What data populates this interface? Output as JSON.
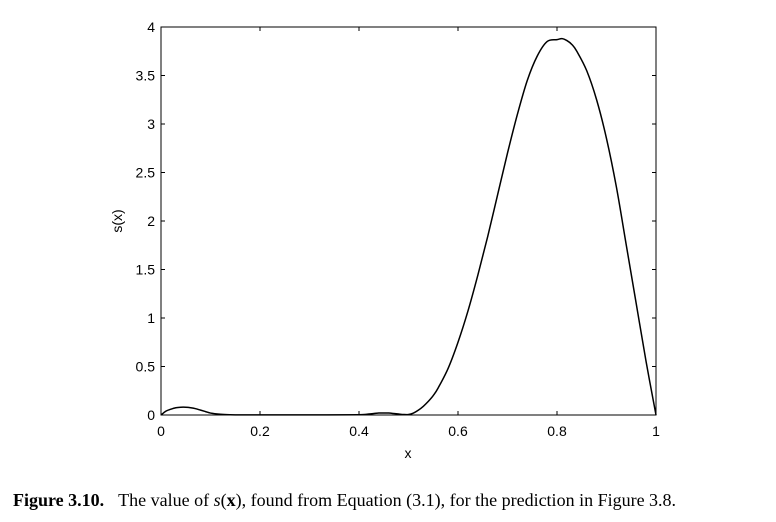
{
  "chart_data": {
    "type": "line",
    "xlabel": "x",
    "ylabel": "s(x)",
    "xlim": [
      0,
      1
    ],
    "ylim": [
      0,
      4
    ],
    "x_ticks": [
      0,
      0.2,
      0.4,
      0.6,
      0.8,
      1
    ],
    "x_tick_labels": [
      "0",
      "0.2",
      "0.4",
      "0.6",
      "0.8",
      "1"
    ],
    "y_ticks": [
      0,
      0.5,
      1,
      1.5,
      2,
      2.5,
      3,
      3.5,
      4
    ],
    "y_tick_labels": [
      "0",
      "0.5",
      "1",
      "1.5",
      "2",
      "2.5",
      "3",
      "3.5",
      "4"
    ],
    "grid": false,
    "series": [
      {
        "x": [
          0,
          0.01,
          0.02,
          0.03,
          0.04,
          0.05,
          0.06,
          0.07,
          0.08,
          0.09,
          0.1,
          0.12,
          0.14,
          0.16,
          0.2,
          0.3,
          0.4,
          0.42,
          0.44,
          0.46,
          0.47,
          0.48,
          0.49,
          0.5,
          0.51,
          0.52,
          0.53,
          0.54,
          0.55,
          0.56,
          0.58,
          0.6,
          0.62,
          0.64,
          0.66,
          0.68,
          0.7,
          0.72,
          0.74,
          0.76,
          0.78,
          0.8,
          0.81,
          0.82,
          0.83,
          0.84,
          0.86,
          0.88,
          0.9,
          0.92,
          0.94,
          0.96,
          0.98,
          1
        ],
        "y": [
          0,
          0.04,
          0.06,
          0.075,
          0.08,
          0.08,
          0.075,
          0.065,
          0.05,
          0.035,
          0.02,
          0.008,
          0.003,
          0.001,
          0.001,
          0.001,
          0.003,
          0.01,
          0.02,
          0.02,
          0.015,
          0.01,
          0.005,
          0.005,
          0.02,
          0.05,
          0.09,
          0.14,
          0.2,
          0.28,
          0.48,
          0.75,
          1.07,
          1.44,
          1.84,
          2.27,
          2.7,
          3.1,
          3.45,
          3.7,
          3.85,
          3.87,
          3.88,
          3.86,
          3.82,
          3.75,
          3.55,
          3.25,
          2.85,
          2.35,
          1.75,
          1.15,
          0.55,
          0
        ]
      }
    ]
  },
  "caption": {
    "label": "Figure 3.10.",
    "text_before": "The value of ",
    "symbol": "s",
    "open_paren": "(",
    "vector": "x",
    "text_after": "), found from Equation (3.1), for the prediction in Figure 3.8."
  }
}
